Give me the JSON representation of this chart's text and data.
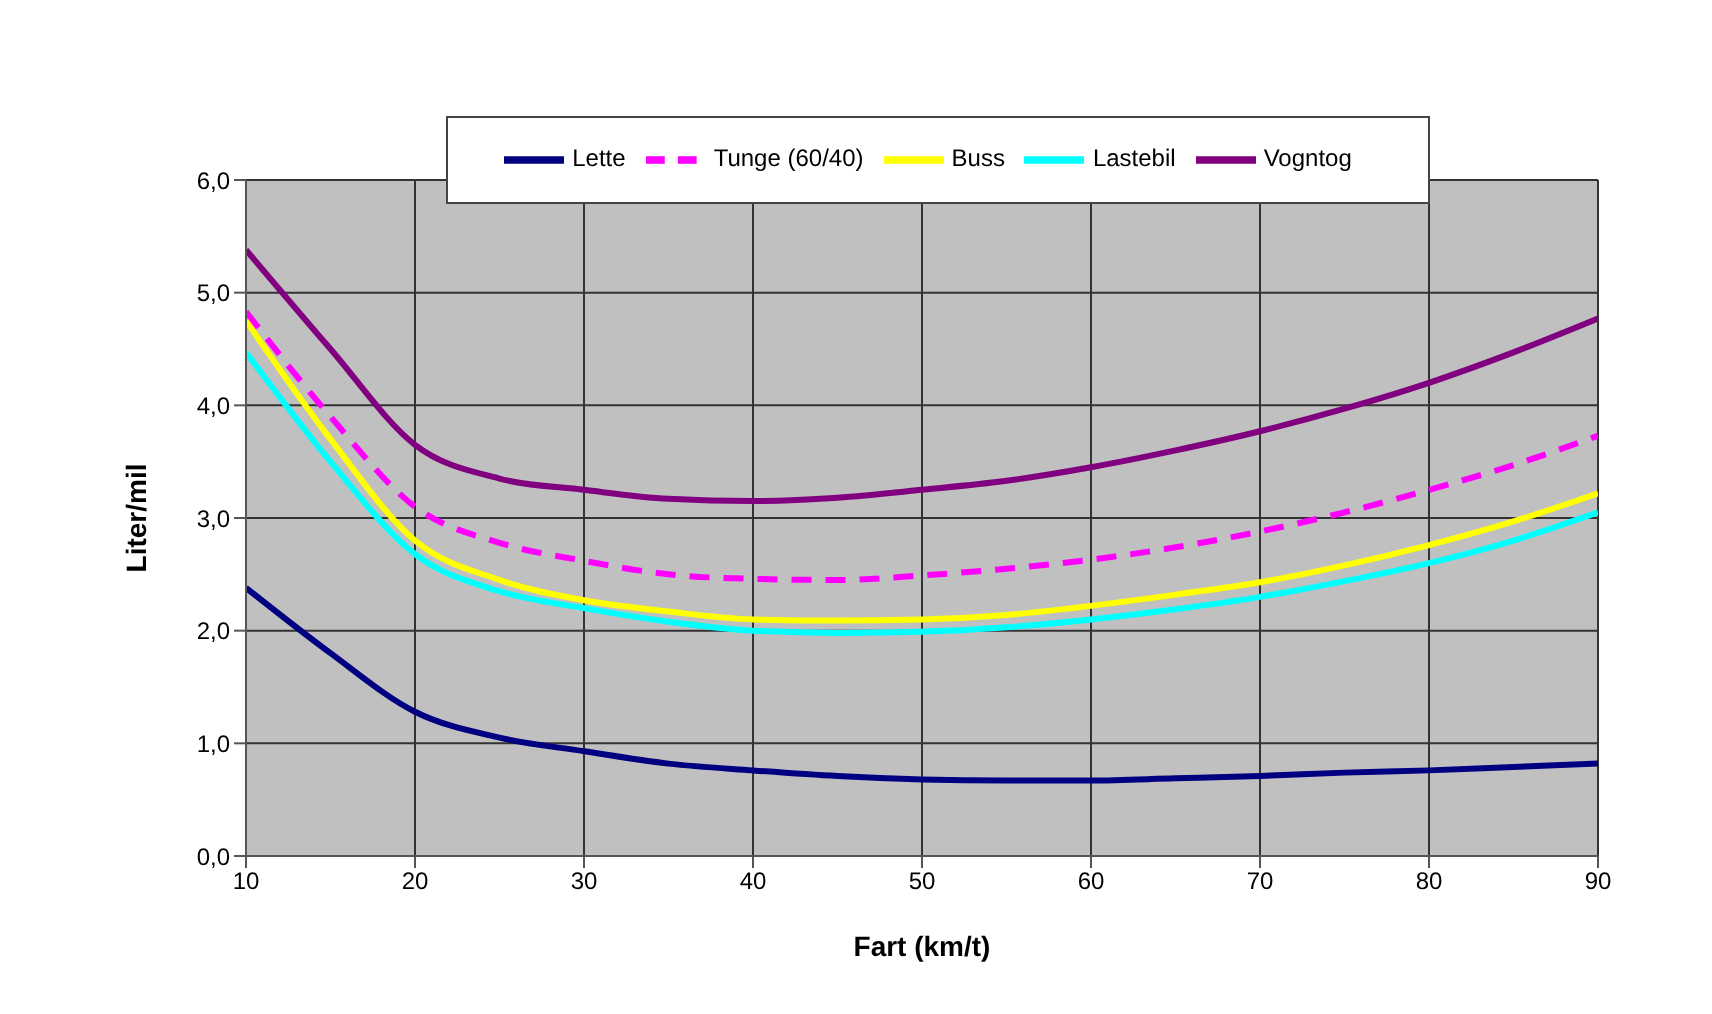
{
  "chart_data": {
    "type": "line",
    "xlabel": "Fart (km/t)",
    "ylabel": "Liter/mil",
    "x": [
      10,
      15,
      20,
      25,
      30,
      35,
      40,
      45,
      50,
      55,
      60,
      65,
      70,
      75,
      80,
      85,
      90
    ],
    "xlim": [
      10,
      90
    ],
    "xticks": [
      10,
      20,
      30,
      40,
      50,
      60,
      70,
      80,
      90
    ],
    "ylim": [
      0,
      6
    ],
    "yticks": [
      {
        "value": 0,
        "label": "0,0"
      },
      {
        "value": 1,
        "label": "1,0"
      },
      {
        "value": 2,
        "label": "2,0"
      },
      {
        "value": 3,
        "label": "3,0"
      },
      {
        "value": 4,
        "label": "4,0"
      },
      {
        "value": 5,
        "label": "5,0"
      },
      {
        "value": 6,
        "label": "6,0"
      }
    ],
    "grid": true,
    "legend": "top",
    "marker": "none",
    "series": [
      {
        "name": "Lette",
        "color": "#000080",
        "line_style": "solid",
        "values": [
          2.38,
          1.8,
          1.28,
          1.05,
          0.93,
          0.82,
          0.76,
          0.71,
          0.68,
          0.67,
          0.67,
          0.69,
          0.71,
          0.74,
          0.76,
          0.79,
          0.82
        ]
      },
      {
        "name": "Tunge (60/40)",
        "color": "#ff00ff",
        "line_style": "dashed",
        "values": [
          4.83,
          3.9,
          3.1,
          2.78,
          2.62,
          2.5,
          2.46,
          2.45,
          2.49,
          2.55,
          2.63,
          2.74,
          2.88,
          3.05,
          3.25,
          3.47,
          3.73
        ]
      },
      {
        "name": "Buss",
        "color": "#ffff00",
        "line_style": "solid",
        "values": [
          4.75,
          3.7,
          2.8,
          2.45,
          2.27,
          2.17,
          2.1,
          2.09,
          2.1,
          2.14,
          2.22,
          2.32,
          2.43,
          2.58,
          2.76,
          2.97,
          3.22
        ]
      },
      {
        "name": "Lastebil",
        "color": "#00ffff",
        "line_style": "solid",
        "values": [
          4.47,
          3.5,
          2.68,
          2.35,
          2.2,
          2.08,
          2.0,
          1.98,
          1.99,
          2.03,
          2.1,
          2.19,
          2.3,
          2.44,
          2.6,
          2.8,
          3.05
        ]
      },
      {
        "name": "Vogntog",
        "color": "#800080",
        "line_style": "solid",
        "values": [
          5.38,
          4.5,
          3.65,
          3.35,
          3.25,
          3.17,
          3.15,
          3.18,
          3.25,
          3.33,
          3.45,
          3.6,
          3.77,
          3.97,
          4.2,
          4.47,
          4.77
        ]
      }
    ]
  }
}
